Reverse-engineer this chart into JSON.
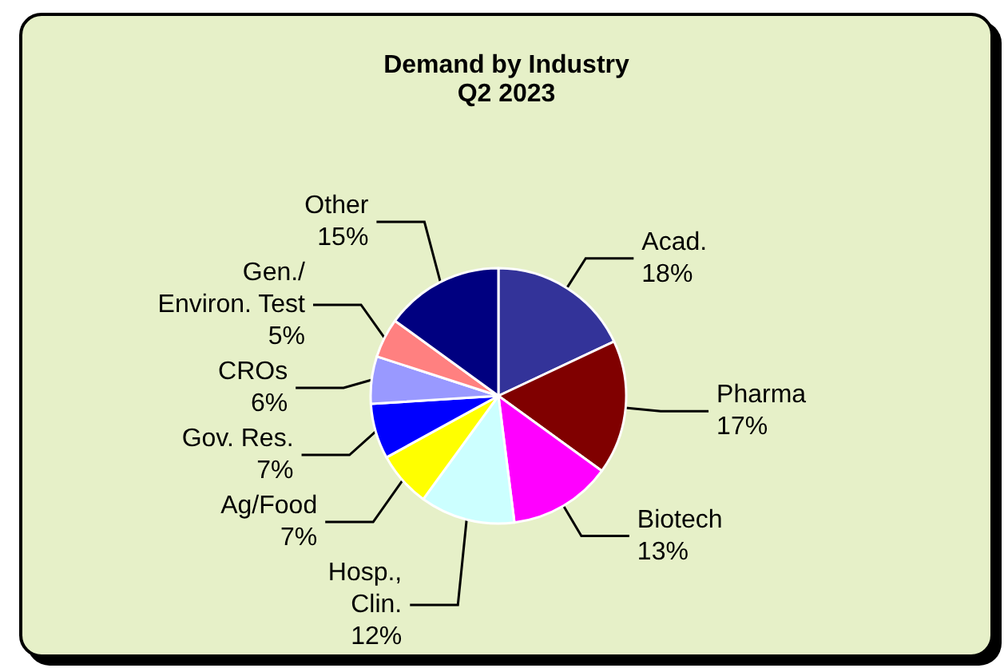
{
  "chart_data": {
    "type": "pie",
    "title": "Demand by Industry",
    "subtitle": "Q2 2023",
    "categories": [
      "Acad.",
      "Pharma",
      "Biotech",
      "Hosp.,\nClin.",
      "Ag/Food",
      "Gov. Res.",
      "CROs",
      "Gen./\nEnviron. Test",
      "Other"
    ],
    "values": [
      18,
      17,
      13,
      12,
      7,
      7,
      6,
      5,
      15
    ],
    "value_labels": [
      "18%",
      "17%",
      "13%",
      "12%",
      "7%",
      "7%",
      "6%",
      "5%",
      "15%"
    ],
    "colors": [
      "#333399",
      "#800000",
      "#ff00ff",
      "#ccffff",
      "#ffff00",
      "#0000ff",
      "#9999ff",
      "#ff8080",
      "#000080"
    ]
  }
}
